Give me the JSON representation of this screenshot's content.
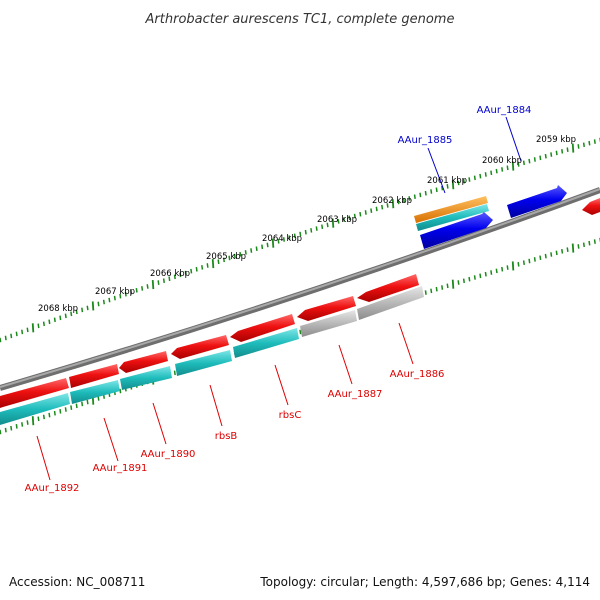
{
  "title": "Arthrobacter aurescens TC1, complete genome",
  "footer": {
    "accession": "Accession: NC_008711",
    "summary": "Topology: circular; Length: 4,597,686 bp; Genes: 4,114"
  },
  "colors": {
    "backbone": "#808080",
    "ticks": "#1a8a1a",
    "reverse_gene": "#ee1111",
    "forward_gene": "#0000ee",
    "cds_reverse": "#1fbcbc",
    "cds_grey": "#b4b4b4",
    "orange": "#f08c10",
    "label_reverse": "#dd0000",
    "label_forward": "#0000cc"
  },
  "scale_ticks": [
    {
      "kbp": 2068,
      "label": "2068 kbp"
    },
    {
      "kbp": 2067,
      "label": "2067 kbp"
    },
    {
      "kbp": 2066,
      "label": "2066 kbp"
    },
    {
      "kbp": 2065,
      "label": "2065 kbp"
    },
    {
      "kbp": 2064,
      "label": "2064 kbp"
    },
    {
      "kbp": 2063,
      "label": "2063 kbp"
    },
    {
      "kbp": 2062,
      "label": "2062 kbp"
    },
    {
      "kbp": 2061,
      "label": "2061 kbp"
    },
    {
      "kbp": 2060,
      "label": "2060 kbp"
    },
    {
      "kbp": 2059,
      "label": "2059 kbp"
    }
  ],
  "genes": [
    {
      "name": "AAur_1892",
      "strand": "reverse"
    },
    {
      "name": "AAur_1891",
      "strand": "reverse"
    },
    {
      "name": "AAur_1890",
      "strand": "reverse"
    },
    {
      "name": "rbsB",
      "strand": "reverse"
    },
    {
      "name": "rbsC",
      "strand": "reverse"
    },
    {
      "name": "AAur_1887",
      "strand": "reverse"
    },
    {
      "name": "AAur_1886",
      "strand": "reverse"
    },
    {
      "name": "AAur_1885",
      "strand": "forward"
    },
    {
      "name": "AAur_1884",
      "strand": "forward"
    }
  ]
}
